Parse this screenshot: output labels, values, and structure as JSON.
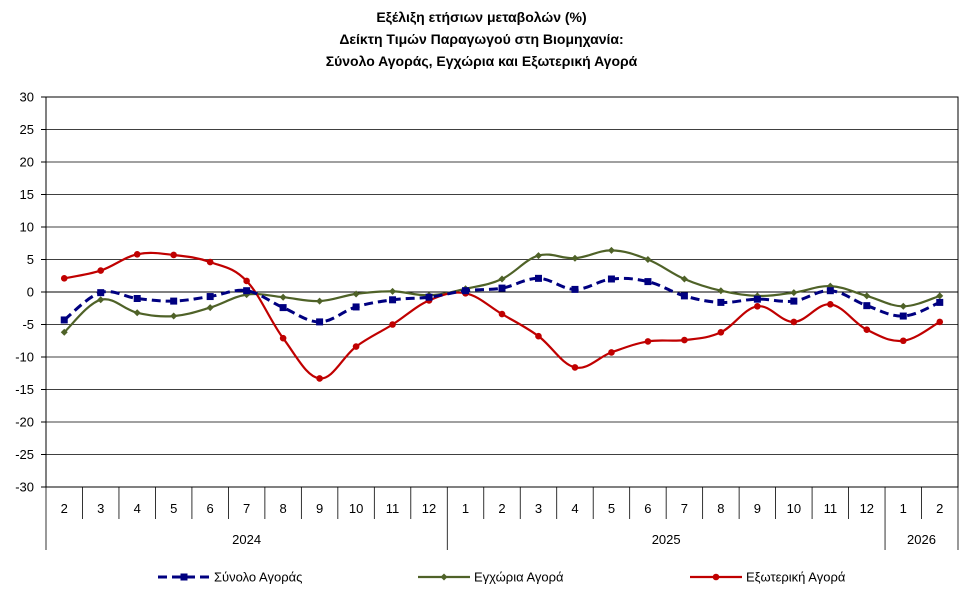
{
  "chart_data": {
    "type": "line",
    "title": [
      "Εξέλιξη ετήσιων μεταβολών (%)",
      "Δείκτη Τιμών Παραγωγού στη Βιομηχανία:",
      "Σύνολο Αγοράς, Εγχώρια και Εξωτερική Αγορά"
    ],
    "ylim": [
      -30,
      30
    ],
    "ytick_step": 5,
    "categories": [
      "2",
      "3",
      "4",
      "5",
      "6",
      "7",
      "8",
      "9",
      "10",
      "11",
      "12",
      "1",
      "2",
      "3",
      "4",
      "5",
      "6",
      "7",
      "8",
      "9",
      "10",
      "11",
      "12",
      "1",
      "2"
    ],
    "years": [
      {
        "label": "2024",
        "start": 0,
        "end": 10
      },
      {
        "label": "2025",
        "start": 11,
        "end": 22
      },
      {
        "label": "2026",
        "start": 23,
        "end": 24
      }
    ],
    "grid": "horizontal",
    "legend_position": "bottom",
    "series": [
      {
        "name": "Σύνολο Αγοράς",
        "color": "#000080",
        "style": "dashed",
        "marker": "square",
        "values": [
          -4.3,
          -0.1,
          -1.0,
          -1.4,
          -0.7,
          0.2,
          -2.4,
          -4.6,
          -2.3,
          -1.2,
          -0.8,
          0.2,
          0.6,
          2.1,
          0.4,
          2.0,
          1.6,
          -0.6,
          -1.6,
          -1.1,
          -1.4,
          0.2,
          -2.1,
          -3.7,
          -1.6
        ]
      },
      {
        "name": "Εγχώρια Αγορά",
        "color": "#4f6228",
        "style": "solid",
        "marker": "diamond",
        "values": [
          -6.2,
          -1.2,
          -3.2,
          -3.7,
          -2.4,
          -0.4,
          -0.8,
          -1.4,
          -0.3,
          0.1,
          -0.5,
          0.5,
          2.0,
          5.6,
          5.2,
          6.4,
          5.0,
          2.0,
          0.2,
          -0.6,
          -0.1,
          0.9,
          -0.6,
          -2.2,
          -0.6
        ]
      },
      {
        "name": "Εξωτερική Αγορά",
        "color": "#c00000",
        "style": "solid",
        "marker": "circle",
        "values": [
          2.1,
          3.3,
          5.8,
          5.7,
          4.6,
          1.7,
          -7.1,
          -13.3,
          -8.4,
          -5.0,
          -1.3,
          -0.2,
          -3.4,
          -6.8,
          -11.6,
          -9.3,
          -7.6,
          -7.4,
          -6.2,
          -2.2,
          -4.6,
          -1.9,
          -5.8,
          -7.5,
          -4.6
        ]
      }
    ]
  }
}
